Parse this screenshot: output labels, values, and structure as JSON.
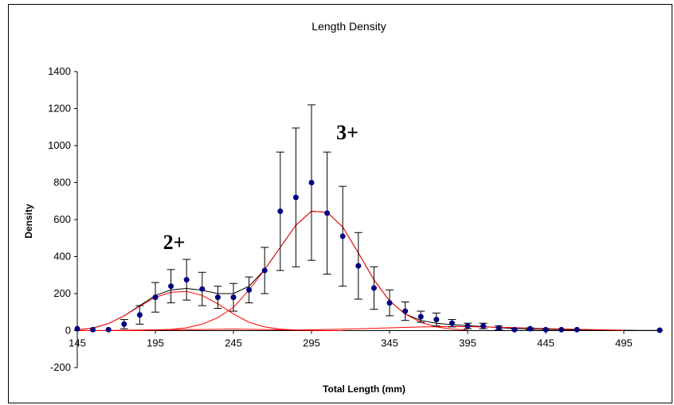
{
  "chart_data": {
    "type": "scatter",
    "title": "Length Density",
    "xlabel": "Total Length (mm)",
    "ylabel": "Density",
    "xlim": [
      145,
      520
    ],
    "ylim": [
      -200,
      1400
    ],
    "x_ticks": [
      145,
      195,
      245,
      295,
      345,
      395,
      445,
      495
    ],
    "y_ticks": [
      -200,
      0,
      200,
      400,
      600,
      800,
      1000,
      1200,
      1400
    ],
    "grid": false,
    "legend": "none",
    "series": [
      {
        "kind": "points_with_error_bars",
        "color": "#000080",
        "points": [
          {
            "x": 145,
            "y": 10,
            "err": 0
          },
          {
            "x": 155,
            "y": 5,
            "err": 0
          },
          {
            "x": 165,
            "y": 5,
            "err": 0
          },
          {
            "x": 175,
            "y": 35,
            "err": 25
          },
          {
            "x": 185,
            "y": 85,
            "err": 50
          },
          {
            "x": 195,
            "y": 180,
            "err": 80
          },
          {
            "x": 205,
            "y": 240,
            "err": 90
          },
          {
            "x": 215,
            "y": 275,
            "err": 110
          },
          {
            "x": 225,
            "y": 225,
            "err": 90
          },
          {
            "x": 235,
            "y": 180,
            "err": 60
          },
          {
            "x": 245,
            "y": 180,
            "err": 75
          },
          {
            "x": 255,
            "y": 220,
            "err": 70
          },
          {
            "x": 265,
            "y": 325,
            "err": 125
          },
          {
            "x": 275,
            "y": 645,
            "err": 320
          },
          {
            "x": 285,
            "y": 720,
            "err": 375
          },
          {
            "x": 295,
            "y": 800,
            "err": 420
          },
          {
            "x": 305,
            "y": 635,
            "err": 330
          },
          {
            "x": 315,
            "y": 510,
            "err": 270
          },
          {
            "x": 325,
            "y": 350,
            "err": 180
          },
          {
            "x": 335,
            "y": 230,
            "err": 115
          },
          {
            "x": 345,
            "y": 150,
            "err": 70
          },
          {
            "x": 355,
            "y": 105,
            "err": 50
          },
          {
            "x": 365,
            "y": 75,
            "err": 30
          },
          {
            "x": 375,
            "y": 60,
            "err": 35
          },
          {
            "x": 385,
            "y": 40,
            "err": 20
          },
          {
            "x": 395,
            "y": 25,
            "err": 15
          },
          {
            "x": 405,
            "y": 25,
            "err": 15
          },
          {
            "x": 415,
            "y": 15,
            "err": 10
          },
          {
            "x": 425,
            "y": 5,
            "err": 5
          },
          {
            "x": 435,
            "y": 10,
            "err": 5
          },
          {
            "x": 445,
            "y": 5,
            "err": 5
          },
          {
            "x": 455,
            "y": 5,
            "err": 0
          },
          {
            "x": 465,
            "y": 5,
            "err": 0
          },
          {
            "x": 518,
            "y": 2,
            "err": 0
          }
        ]
      },
      {
        "kind": "line",
        "color": "#000000",
        "x": [
          145,
          155,
          165,
          175,
          185,
          195,
          205,
          215,
          225,
          235,
          245,
          255,
          265,
          275,
          285,
          295,
          305,
          315,
          325,
          335,
          345,
          355,
          365,
          375,
          385,
          395,
          405,
          415,
          425,
          435,
          445,
          455,
          465,
          475,
          485,
          495,
          505,
          518
        ],
        "values": [
          4,
          14,
          38,
          80,
          135,
          190,
          220,
          228,
          218,
          200,
          200,
          240,
          330,
          450,
          570,
          645,
          640,
          560,
          420,
          275,
          160,
          90,
          55,
          40,
          32,
          27,
          22,
          16,
          11,
          8,
          6,
          5,
          4,
          3,
          2,
          2,
          1,
          1
        ]
      },
      {
        "kind": "line",
        "color": "#ff0000",
        "x": [
          145,
          155,
          165,
          175,
          185,
          195,
          205,
          215,
          225,
          235,
          245,
          255,
          265,
          275,
          285,
          295,
          305,
          315
        ],
        "values": [
          4,
          14,
          38,
          80,
          132,
          180,
          207,
          212,
          190,
          145,
          90,
          45,
          20,
          8,
          3,
          1,
          0,
          0
        ]
      },
      {
        "kind": "line",
        "color": "#ff0000",
        "x": [
          165,
          175,
          185,
          195,
          205,
          215,
          225,
          235,
          245,
          255,
          265,
          275,
          285,
          295,
          305,
          315,
          325,
          335,
          345,
          355,
          365,
          375,
          385,
          395
        ],
        "values": [
          0,
          0,
          1,
          3,
          7,
          15,
          35,
          70,
          125,
          220,
          330,
          450,
          570,
          645,
          640,
          560,
          420,
          275,
          160,
          90,
          45,
          20,
          8,
          3
        ]
      },
      {
        "kind": "line",
        "color": "#ff0000",
        "x": [
          145,
          165,
          185,
          205,
          225,
          245,
          265,
          285,
          305,
          325,
          345,
          365,
          385,
          405,
          425,
          445,
          465,
          485,
          495
        ],
        "values": [
          0,
          1,
          3,
          5,
          6,
          8,
          6,
          3,
          6,
          10,
          15,
          20,
          22,
          20,
          16,
          11,
          7,
          4,
          2
        ]
      }
    ],
    "annotations": [
      {
        "text": "2+",
        "x": 207,
        "y": 440
      },
      {
        "text": "3+",
        "x": 318,
        "y": 1035
      }
    ]
  }
}
